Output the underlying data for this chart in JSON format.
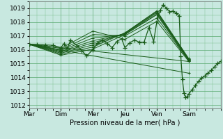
{
  "xlabel": "Pression niveau de la mer( hPa )",
  "background_color": "#c8e8e0",
  "grid_color_major": "#5aaa70",
  "grid_color_minor": "#7abf8a",
  "line_color": "#1a5c1a",
  "ylim": [
    1011.75,
    1019.5
  ],
  "yticks": [
    1012,
    1013,
    1014,
    1015,
    1016,
    1017,
    1018,
    1019
  ],
  "xlim": [
    0.0,
    6.0
  ],
  "xtick_positions": [
    0,
    1,
    2,
    3,
    4,
    5
  ],
  "xtick_labels": [
    "Mar",
    "Dim",
    "Mer",
    "Jeu",
    "Ven",
    "Sam"
  ],
  "fan_lines": [
    {
      "x": [
        0,
        1,
        2,
        3,
        4,
        5
      ],
      "y": [
        1016.4,
        1016.1,
        1017.35,
        1016.75,
        1018.05,
        1015.15
      ]
    },
    {
      "x": [
        0,
        1,
        2,
        3,
        4,
        5
      ],
      "y": [
        1016.4,
        1016.0,
        1017.1,
        1017.0,
        1018.3,
        1015.2
      ]
    },
    {
      "x": [
        0,
        1,
        2,
        3,
        4,
        5
      ],
      "y": [
        1016.4,
        1015.95,
        1016.85,
        1017.1,
        1018.55,
        1015.25
      ]
    },
    {
      "x": [
        0,
        1,
        2,
        3,
        4,
        5
      ],
      "y": [
        1016.4,
        1015.88,
        1016.65,
        1017.15,
        1018.65,
        1015.28
      ]
    },
    {
      "x": [
        0,
        1,
        2,
        3,
        4,
        5
      ],
      "y": [
        1016.4,
        1015.82,
        1016.5,
        1017.18,
        1018.72,
        1015.3
      ]
    },
    {
      "x": [
        0,
        1,
        2,
        3,
        4,
        5
      ],
      "y": [
        1016.4,
        1015.75,
        1016.35,
        1017.2,
        1018.78,
        1015.32
      ]
    },
    {
      "x": [
        0,
        1,
        2,
        3,
        4,
        5
      ],
      "y": [
        1016.4,
        1015.68,
        1016.2,
        1017.22,
        1018.82,
        1015.35
      ]
    },
    {
      "x": [
        0,
        1,
        2,
        3,
        4,
        5
      ],
      "y": [
        1016.4,
        1015.6,
        1016.05,
        1017.1,
        1018.55,
        1015.2
      ]
    },
    {
      "x": [
        0,
        5
      ],
      "y": [
        1016.4,
        1015.15
      ]
    },
    {
      "x": [
        0,
        5
      ],
      "y": [
        1016.4,
        1014.3
      ]
    }
  ],
  "detail_x": [
    0,
    0.25,
    0.5,
    0.75,
    1.0,
    1.1,
    1.2,
    1.3,
    1.5,
    1.65,
    1.8,
    2.0,
    2.15,
    2.3,
    2.45,
    2.6,
    2.75,
    2.9,
    3.0,
    3.15,
    3.3,
    3.45,
    3.6,
    3.75,
    3.9,
    4.0,
    4.1,
    4.2,
    4.3,
    4.4,
    4.5,
    4.6,
    4.7,
    4.75,
    4.8,
    4.85,
    4.9,
    4.95,
    5.0,
    5.1,
    5.2,
    5.3,
    5.4,
    5.5,
    5.6,
    5.7,
    5.8,
    5.9,
    6.0
  ],
  "detail_y": [
    1016.4,
    1016.38,
    1016.35,
    1016.32,
    1016.15,
    1016.45,
    1016.1,
    1016.7,
    1016.3,
    1015.95,
    1015.55,
    1016.0,
    1016.5,
    1016.7,
    1016.45,
    1016.15,
    1016.6,
    1016.8,
    1016.15,
    1016.5,
    1016.7,
    1016.55,
    1016.55,
    1017.6,
    1016.6,
    1018.05,
    1018.85,
    1019.25,
    1019.0,
    1018.75,
    1018.8,
    1018.65,
    1018.45,
    1015.5,
    1013.85,
    1012.85,
    1012.55,
    1012.6,
    1012.8,
    1013.1,
    1013.4,
    1013.7,
    1013.95,
    1014.1,
    1014.3,
    1014.5,
    1014.75,
    1015.0,
    1015.15
  ]
}
